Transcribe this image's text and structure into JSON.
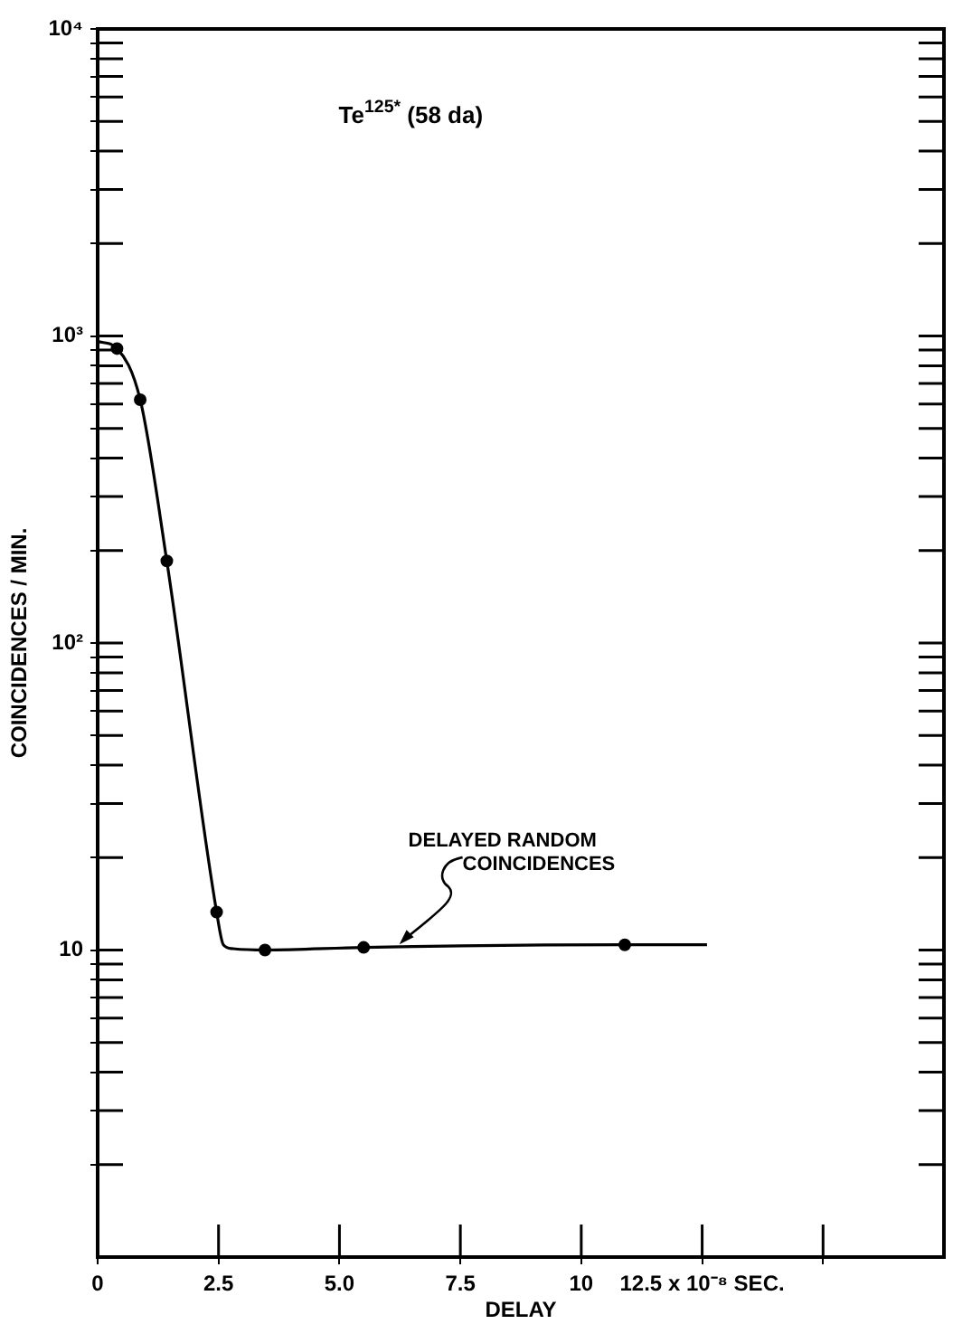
{
  "chart_data": {
    "type": "scatter",
    "title": "Te$^{125*}$ (58 da)",
    "xlabel": "DELAY",
    "ylabel": "COINCIDENCES / MIN.",
    "log": "y",
    "grid": false,
    "legend": false,
    "xlim": [
      0,
      17.5
    ],
    "xticks": [
      0,
      2.5,
      {
        "value": 5,
        "label": "5.0"
      },
      7.5,
      10,
      {
        "value": 12.5,
        "label": "12.5 x 10⁻⁸ SEC."
      },
      {
        "value": 15,
        "label": null
      }
    ],
    "ylim": [
      1,
      10000
    ],
    "yticks": [
      {
        "value": 2,
        "label": null
      },
      {
        "value": 3,
        "label": null
      },
      {
        "value": 4,
        "label": null
      },
      {
        "value": 5,
        "label": null
      },
      {
        "value": 6,
        "label": null
      },
      {
        "value": 7,
        "label": null
      },
      {
        "value": 8,
        "label": null
      },
      {
        "value": 9,
        "label": null
      },
      10,
      {
        "value": 20,
        "label": null
      },
      {
        "value": 30,
        "label": null
      },
      {
        "value": 40,
        "label": null
      },
      {
        "value": 50,
        "label": null
      },
      {
        "value": 60,
        "label": null
      },
      {
        "value": 70,
        "label": null
      },
      {
        "value": 80,
        "label": null
      },
      {
        "value": 90,
        "label": null
      },
      {
        "value": 100,
        "label": "10²"
      },
      {
        "value": 200,
        "label": null
      },
      {
        "value": 300,
        "label": null
      },
      {
        "value": 400,
        "label": null
      },
      {
        "value": 500,
        "label": null
      },
      {
        "value": 600,
        "label": null
      },
      {
        "value": 700,
        "label": null
      },
      {
        "value": 800,
        "label": null
      },
      {
        "value": 900,
        "label": null
      },
      {
        "value": 1000,
        "label": "10³"
      },
      {
        "value": 2000,
        "label": null
      },
      {
        "value": 3000,
        "label": null
      },
      {
        "value": 4000,
        "label": null
      },
      {
        "value": 5000,
        "label": null
      },
      {
        "value": 6000,
        "label": null
      },
      {
        "value": 7000,
        "label": null
      },
      {
        "value": 8000,
        "label": null
      },
      {
        "value": 9000,
        "label": null
      },
      {
        "value": 10000,
        "label": "10⁴"
      }
    ],
    "annotations": [
      {
        "text": "DELAYED RANDOM COINCIDENCES",
        "x": 6.2,
        "y": 10.3
      }
    ],
    "series": [
      {
        "type": "line",
        "color": "#000000",
        "marker": "none",
        "x": [
          0,
          0.4,
          0.88,
          1.43,
          2.46,
          2.6,
          2.8,
          3.46,
          5.5,
          10.9,
          12.6
        ],
        "values": [
          960,
          910,
          620,
          185,
          13.3,
          10.4,
          10.1,
          10,
          10.2,
          10.4,
          10.4
        ]
      },
      {
        "type": "scatter",
        "color": "#000000",
        "marker": "circle",
        "x": [
          0.4,
          0.88,
          1.43,
          2.46,
          3.46,
          5.5,
          10.9
        ],
        "values": [
          910,
          620,
          185,
          13.3,
          10,
          10.2,
          10.4
        ]
      }
    ]
  }
}
